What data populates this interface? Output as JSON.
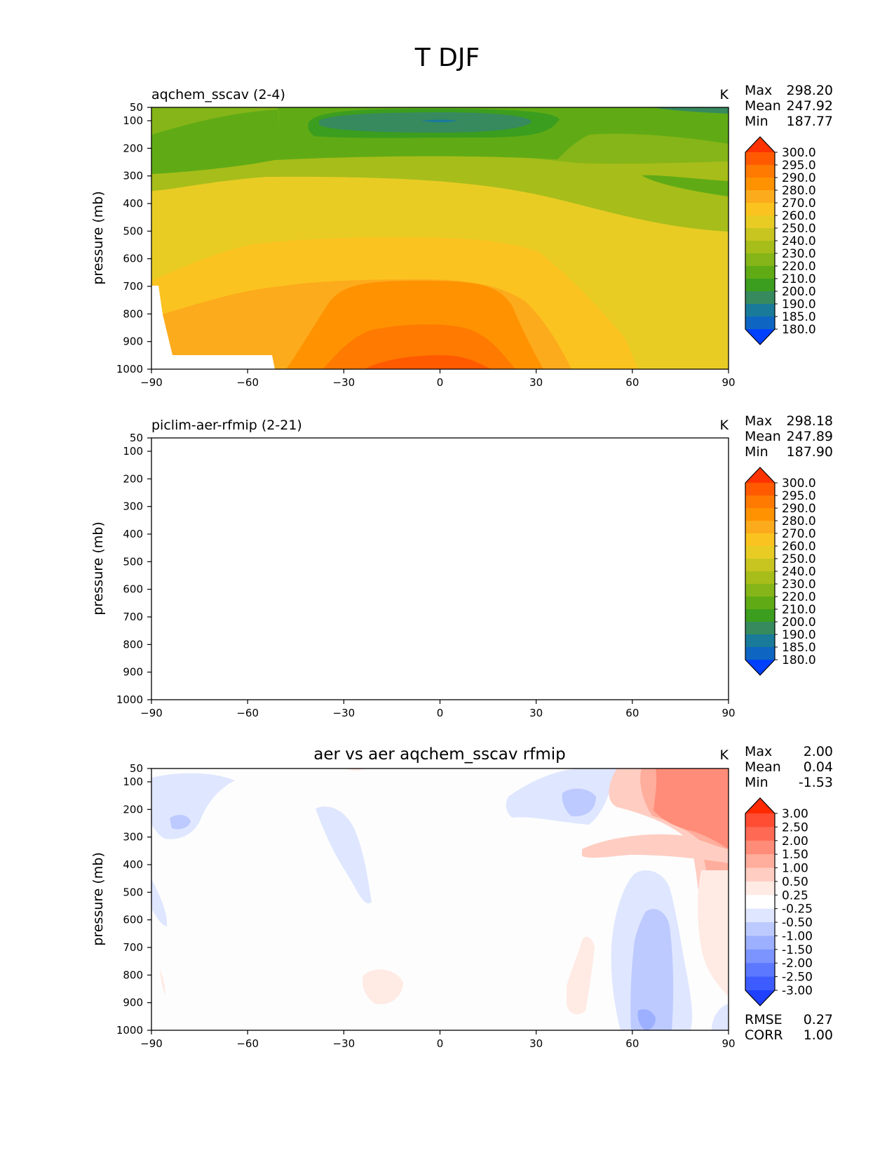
{
  "figure_title": "T DJF",
  "chart_data": [
    {
      "type": "contour",
      "title": "aqchem_sscav (2-4)",
      "units": "K",
      "stats": {
        "max_label": "Max",
        "max": "298.20",
        "mean_label": "Mean",
        "mean": "247.92",
        "min_label": "Min",
        "min": "187.77"
      },
      "ylabel": "pressure (mb)",
      "xlim": [
        -90,
        90
      ],
      "xticks": [
        "−90",
        "−60",
        "−30",
        "0",
        "30",
        "60",
        "90"
      ],
      "ylim": [
        50,
        1000
      ],
      "yticks": [
        "50",
        "100",
        "200",
        "300",
        "400",
        "500",
        "600",
        "700",
        "800",
        "900",
        "1000"
      ],
      "colorbar_labels": [
        "300.0",
        "295.0",
        "290.0",
        "280.0",
        "270.0",
        "260.0",
        "250.0",
        "240.0",
        "230.0",
        "220.0",
        "210.0",
        "200.0",
        "190.0",
        "185.0",
        "180.0"
      ],
      "colorbar_colors": [
        "#ff3300",
        "#ff5a00",
        "#ff7a00",
        "#ff9200",
        "#fcab1c",
        "#fbc31f",
        "#e8cc24",
        "#c8c521",
        "#a7bd1a",
        "#85b518",
        "#60ab15",
        "#3c9e1e",
        "#368a5e",
        "#1a7a9a",
        "#0f66c2",
        "#0040ff"
      ]
    },
    {
      "type": "contour",
      "title": "piclim-aer-rfmip (2-21)",
      "units": "K",
      "stats": {
        "max_label": "Max",
        "max": "298.18",
        "mean_label": "Mean",
        "mean": "247.89",
        "min_label": "Min",
        "min": "187.90"
      },
      "ylabel": "pressure (mb)",
      "xlim": [
        -90,
        90
      ],
      "xticks": [
        "−90",
        "−60",
        "−30",
        "0",
        "30",
        "60",
        "90"
      ],
      "ylim": [
        50,
        1000
      ],
      "yticks": [
        "50",
        "100",
        "200",
        "300",
        "400",
        "500",
        "600",
        "700",
        "800",
        "900",
        "1000"
      ],
      "colorbar_labels": [
        "300.0",
        "295.0",
        "290.0",
        "280.0",
        "270.0",
        "260.0",
        "250.0",
        "240.0",
        "230.0",
        "220.0",
        "210.0",
        "200.0",
        "190.0",
        "185.0",
        "180.0"
      ],
      "colorbar_colors": [
        "#ff3300",
        "#ff5a00",
        "#ff7a00",
        "#ff9200",
        "#fcab1c",
        "#fbc31f",
        "#e8cc24",
        "#c8c521",
        "#a7bd1a",
        "#85b518",
        "#60ab15",
        "#3c9e1e",
        "#368a5e",
        "#1a7a9a",
        "#0f66c2",
        "#0040ff"
      ]
    },
    {
      "type": "contour",
      "title": "aer vs aer aqchem_sscav rfmip",
      "units": "K",
      "stats": {
        "max_label": "Max",
        "max": "2.00",
        "mean_label": "Mean",
        "mean": "0.04",
        "min_label": "Min",
        "min": "-1.53"
      },
      "ylabel": "pressure (mb)",
      "xlim": [
        -90,
        90
      ],
      "xticks": [
        "−90",
        "−60",
        "−30",
        "0",
        "30",
        "60",
        "90"
      ],
      "ylim": [
        50,
        1000
      ],
      "yticks": [
        "50",
        "100",
        "200",
        "300",
        "400",
        "500",
        "600",
        "700",
        "800",
        "900",
        "1000"
      ],
      "colorbar_labels": [
        "3.00",
        "2.50",
        "2.00",
        "1.50",
        "1.00",
        "0.50",
        "0.25",
        "-0.25",
        "-0.50",
        "-1.00",
        "-1.50",
        "-2.00",
        "-2.50",
        "-3.00"
      ],
      "colorbar_colors": [
        "#ff2a00",
        "#ff4d33",
        "#ff6a55",
        "#ff8c78",
        "#ffad9c",
        "#ffcdc2",
        "#ffeae4",
        "#ffffff",
        "#dfe6ff",
        "#bccaff",
        "#9cb0ff",
        "#7c94ff",
        "#5b78ff",
        "#3d5cff",
        "#1f40ff"
      ],
      "rmse_label": "RMSE",
      "rmse": "0.27",
      "corr_label": "CORR",
      "corr": "1.00"
    }
  ]
}
